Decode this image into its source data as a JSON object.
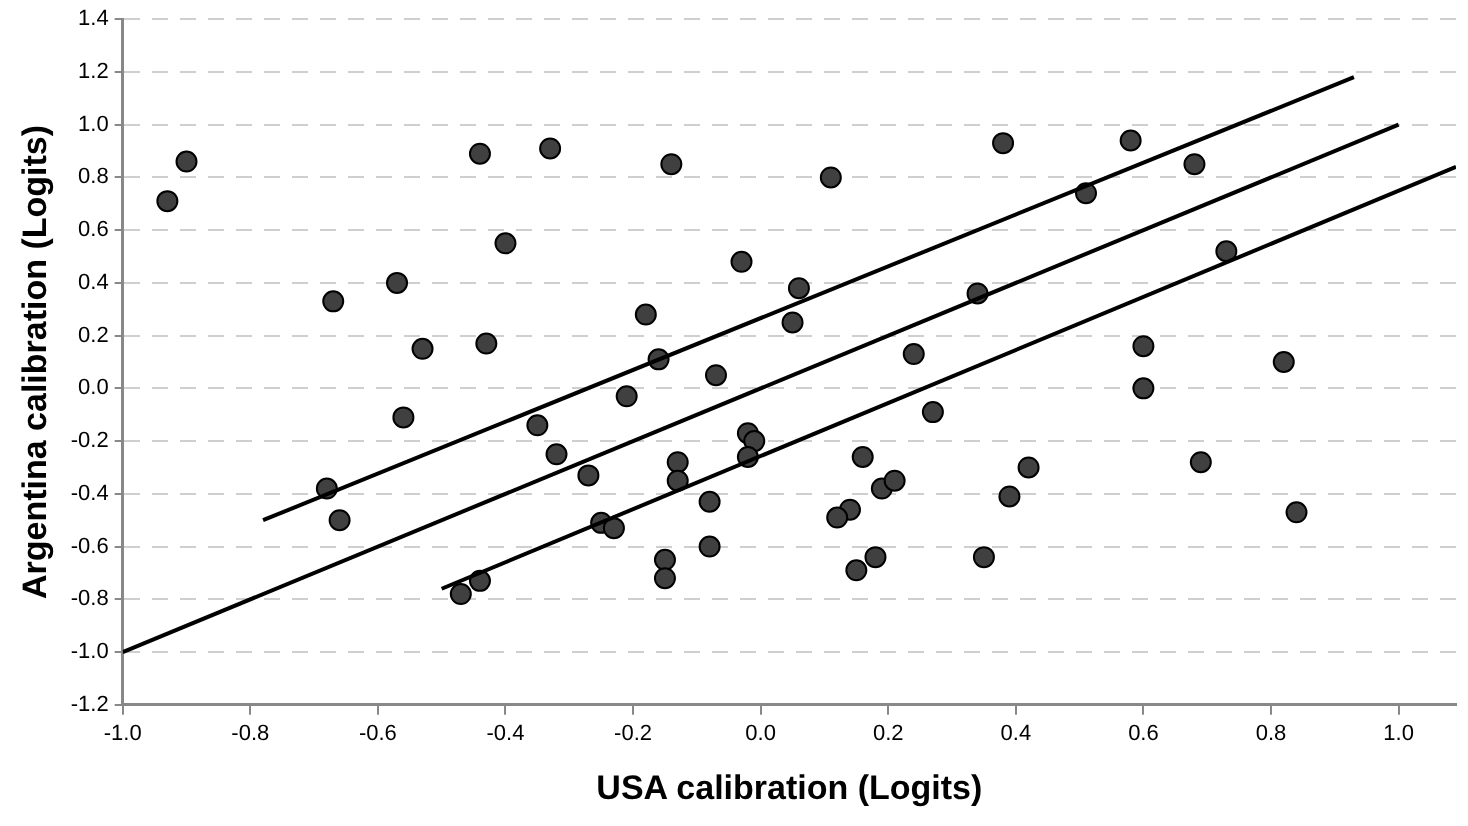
{
  "chart_data": {
    "type": "scatter",
    "xlabel": "USA calibration (Logits)",
    "ylabel": "Argentina calibration (Logits)",
    "xlim": [
      -1.0,
      1.09
    ],
    "ylim": [
      -1.2,
      1.4
    ],
    "xticks": [
      {
        "value": -1,
        "label": "-1.0"
      },
      {
        "value": -0.8,
        "label": "-0.8"
      },
      {
        "value": -0.6,
        "label": "-0.6"
      },
      {
        "value": -0.4,
        "label": "-0.4"
      },
      {
        "value": -0.2,
        "label": "-0.2"
      },
      {
        "value": 0,
        "label": "0.0"
      },
      {
        "value": 0.2,
        "label": "0.2"
      },
      {
        "value": 0.4,
        "label": "0.4"
      },
      {
        "value": 0.6,
        "label": "0.6"
      },
      {
        "value": 0.8,
        "label": "0.8"
      },
      {
        "value": 1,
        "label": "1.0"
      }
    ],
    "yticks": [
      {
        "value": -1.2,
        "label": "-1.2"
      },
      {
        "value": -1,
        "label": "-1.0"
      },
      {
        "value": -0.8,
        "label": "-0.8"
      },
      {
        "value": -0.6,
        "label": "-0.6"
      },
      {
        "value": -0.4,
        "label": "-0.4"
      },
      {
        "value": -0.2,
        "label": "-0.2"
      },
      {
        "value": 0,
        "label": "0.0"
      },
      {
        "value": 0.2,
        "label": "0.2"
      },
      {
        "value": 0.4,
        "label": "0.4"
      },
      {
        "value": 0.6,
        "label": "0.6"
      },
      {
        "value": 0.8,
        "label": "0.8"
      },
      {
        "value": 1,
        "label": "1.0"
      },
      {
        "value": 1.2,
        "label": "1.2"
      },
      {
        "value": 1.4,
        "label": "1.4"
      }
    ],
    "grid": "y",
    "legend": false,
    "marker": "circle",
    "series": [
      {
        "color": "#404040",
        "x": [
          -0.93,
          -0.9,
          -0.67,
          -0.57,
          -0.53,
          -0.44,
          -0.4,
          -0.43,
          -0.33,
          -0.14,
          -0.18,
          -0.16,
          -0.07,
          -0.03,
          -0.21,
          0.11,
          0.06,
          0.05,
          0.38,
          0.58,
          0.68,
          0.51,
          0.73,
          0.34,
          0.24,
          0.6,
          0.82,
          0.6,
          -0.56,
          -0.35,
          -0.32,
          -0.27,
          -0.68,
          -0.66,
          -0.25,
          -0.23,
          -0.47,
          -0.44,
          -0.13,
          -0.13,
          -0.15,
          -0.15,
          -0.08,
          -0.08,
          -0.02,
          -0.01,
          -0.02,
          0.16,
          0.27,
          0.19,
          0.21,
          0.14,
          0.12,
          0.18,
          0.15,
          0.35,
          0.39,
          0.42,
          0.69,
          0.84
        ],
        "values": [
          0.71,
          0.86,
          0.33,
          0.4,
          0.15,
          0.89,
          0.55,
          0.17,
          0.91,
          0.85,
          0.28,
          0.11,
          0.05,
          0.48,
          -0.03,
          0.8,
          0.38,
          0.25,
          0.93,
          0.94,
          0.85,
          0.74,
          0.52,
          0.36,
          0.13,
          0.16,
          0.1,
          0.0,
          -0.11,
          -0.14,
          -0.25,
          -0.33,
          -0.38,
          -0.5,
          -0.51,
          -0.53,
          -0.78,
          -0.73,
          -0.28,
          -0.35,
          -0.65,
          -0.72,
          -0.43,
          -0.6,
          -0.17,
          -0.2,
          -0.26,
          -0.26,
          -0.09,
          -0.38,
          -0.35,
          -0.46,
          -0.49,
          -0.64,
          -0.69,
          -0.64,
          -0.41,
          -0.3,
          -0.28,
          -0.47
        ]
      },
      {
        "type": "line",
        "marker": "none",
        "color": "#000000",
        "x": [
          -1.0,
          1.0
        ],
        "values": [
          -1.0,
          1.0
        ]
      },
      {
        "type": "line",
        "marker": "none",
        "color": "#000000",
        "x": [
          -0.78,
          0.93
        ],
        "values": [
          -0.5,
          1.18
        ]
      },
      {
        "type": "line",
        "marker": "none",
        "color": "#000000",
        "x": [
          -0.5,
          1.09
        ],
        "values": [
          -0.76,
          0.84
        ]
      }
    ]
  }
}
